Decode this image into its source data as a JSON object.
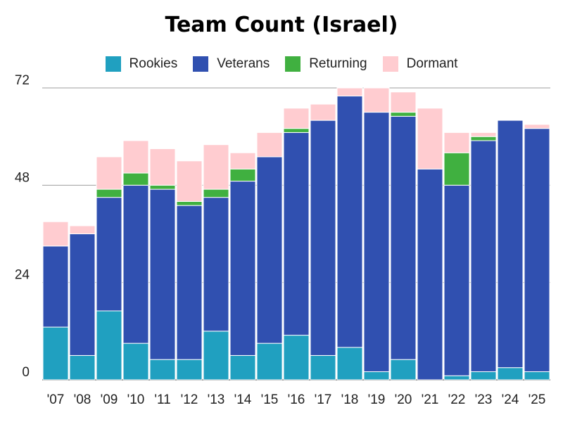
{
  "chart_data": {
    "type": "bar",
    "stacked": true,
    "title": "Team Count (Israel)",
    "xlabel": "",
    "ylabel": "",
    "ylim": [
      0,
      72
    ],
    "yticks": [
      0,
      24,
      48,
      72
    ],
    "grid": true,
    "legend_position": "top",
    "categories": [
      "'07",
      "'08",
      "'09",
      "'10",
      "'11",
      "'12",
      "'13",
      "'14",
      "'15",
      "'16",
      "'17",
      "'18",
      "'19",
      "'20",
      "'21",
      "'22",
      "'23",
      "'24",
      "'25"
    ],
    "series": [
      {
        "name": "Rookies",
        "color": "#20a0c0",
        "values": [
          13,
          6,
          17,
          9,
          5,
          5,
          12,
          6,
          9,
          11,
          6,
          8,
          2,
          5,
          0,
          1,
          2,
          3,
          2
        ]
      },
      {
        "name": "Veterans",
        "color": "#3050b0",
        "values": [
          20,
          30,
          28,
          39,
          42,
          38,
          33,
          43,
          46,
          50,
          58,
          62,
          64,
          60,
          52,
          47,
          57,
          61,
          60
        ]
      },
      {
        "name": "Returning",
        "color": "#40b040",
        "values": [
          0,
          0,
          2,
          3,
          1,
          1,
          2,
          3,
          0,
          1,
          0,
          0,
          0,
          1,
          0,
          8,
          1,
          0,
          0
        ]
      },
      {
        "name": "Dormant",
        "color": "#ffccd0",
        "values": [
          6,
          2,
          8,
          8,
          9,
          10,
          11,
          4,
          6,
          5,
          4,
          2,
          6,
          5,
          15,
          5,
          1,
          0,
          1
        ]
      }
    ]
  }
}
